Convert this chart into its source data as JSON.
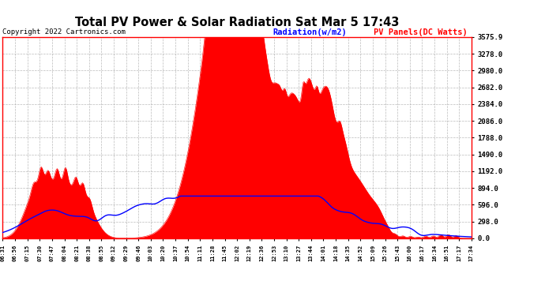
{
  "title": "Total PV Power & Solar Radiation Sat Mar 5 17:43",
  "copyright": "Copyright 2022 Cartronics.com",
  "legend_radiation": "Radiation(w/m2)",
  "legend_pv": "PV Panels(DC Watts)",
  "radiation_color": "blue",
  "pv_color": "red",
  "bg_color": "#ffffff",
  "grid_color": "#aaaaaa",
  "ymax": 3575.9,
  "yticks": [
    0.0,
    298.0,
    596.0,
    894.0,
    1192.0,
    1490.0,
    1788.0,
    2086.0,
    2384.0,
    2682.0,
    2980.0,
    3278.0,
    3575.9
  ],
  "xtick_labels": [
    "06:31",
    "06:56",
    "07:15",
    "07:30",
    "07:47",
    "08:04",
    "08:21",
    "08:38",
    "08:55",
    "09:12",
    "09:29",
    "09:46",
    "10:03",
    "10:20",
    "10:37",
    "10:54",
    "11:11",
    "11:28",
    "11:45",
    "12:02",
    "12:19",
    "12:36",
    "12:53",
    "13:10",
    "13:27",
    "13:44",
    "14:01",
    "14:18",
    "14:35",
    "14:52",
    "15:09",
    "15:26",
    "15:43",
    "16:00",
    "16:17",
    "16:34",
    "16:51",
    "17:17",
    "17:34"
  ]
}
